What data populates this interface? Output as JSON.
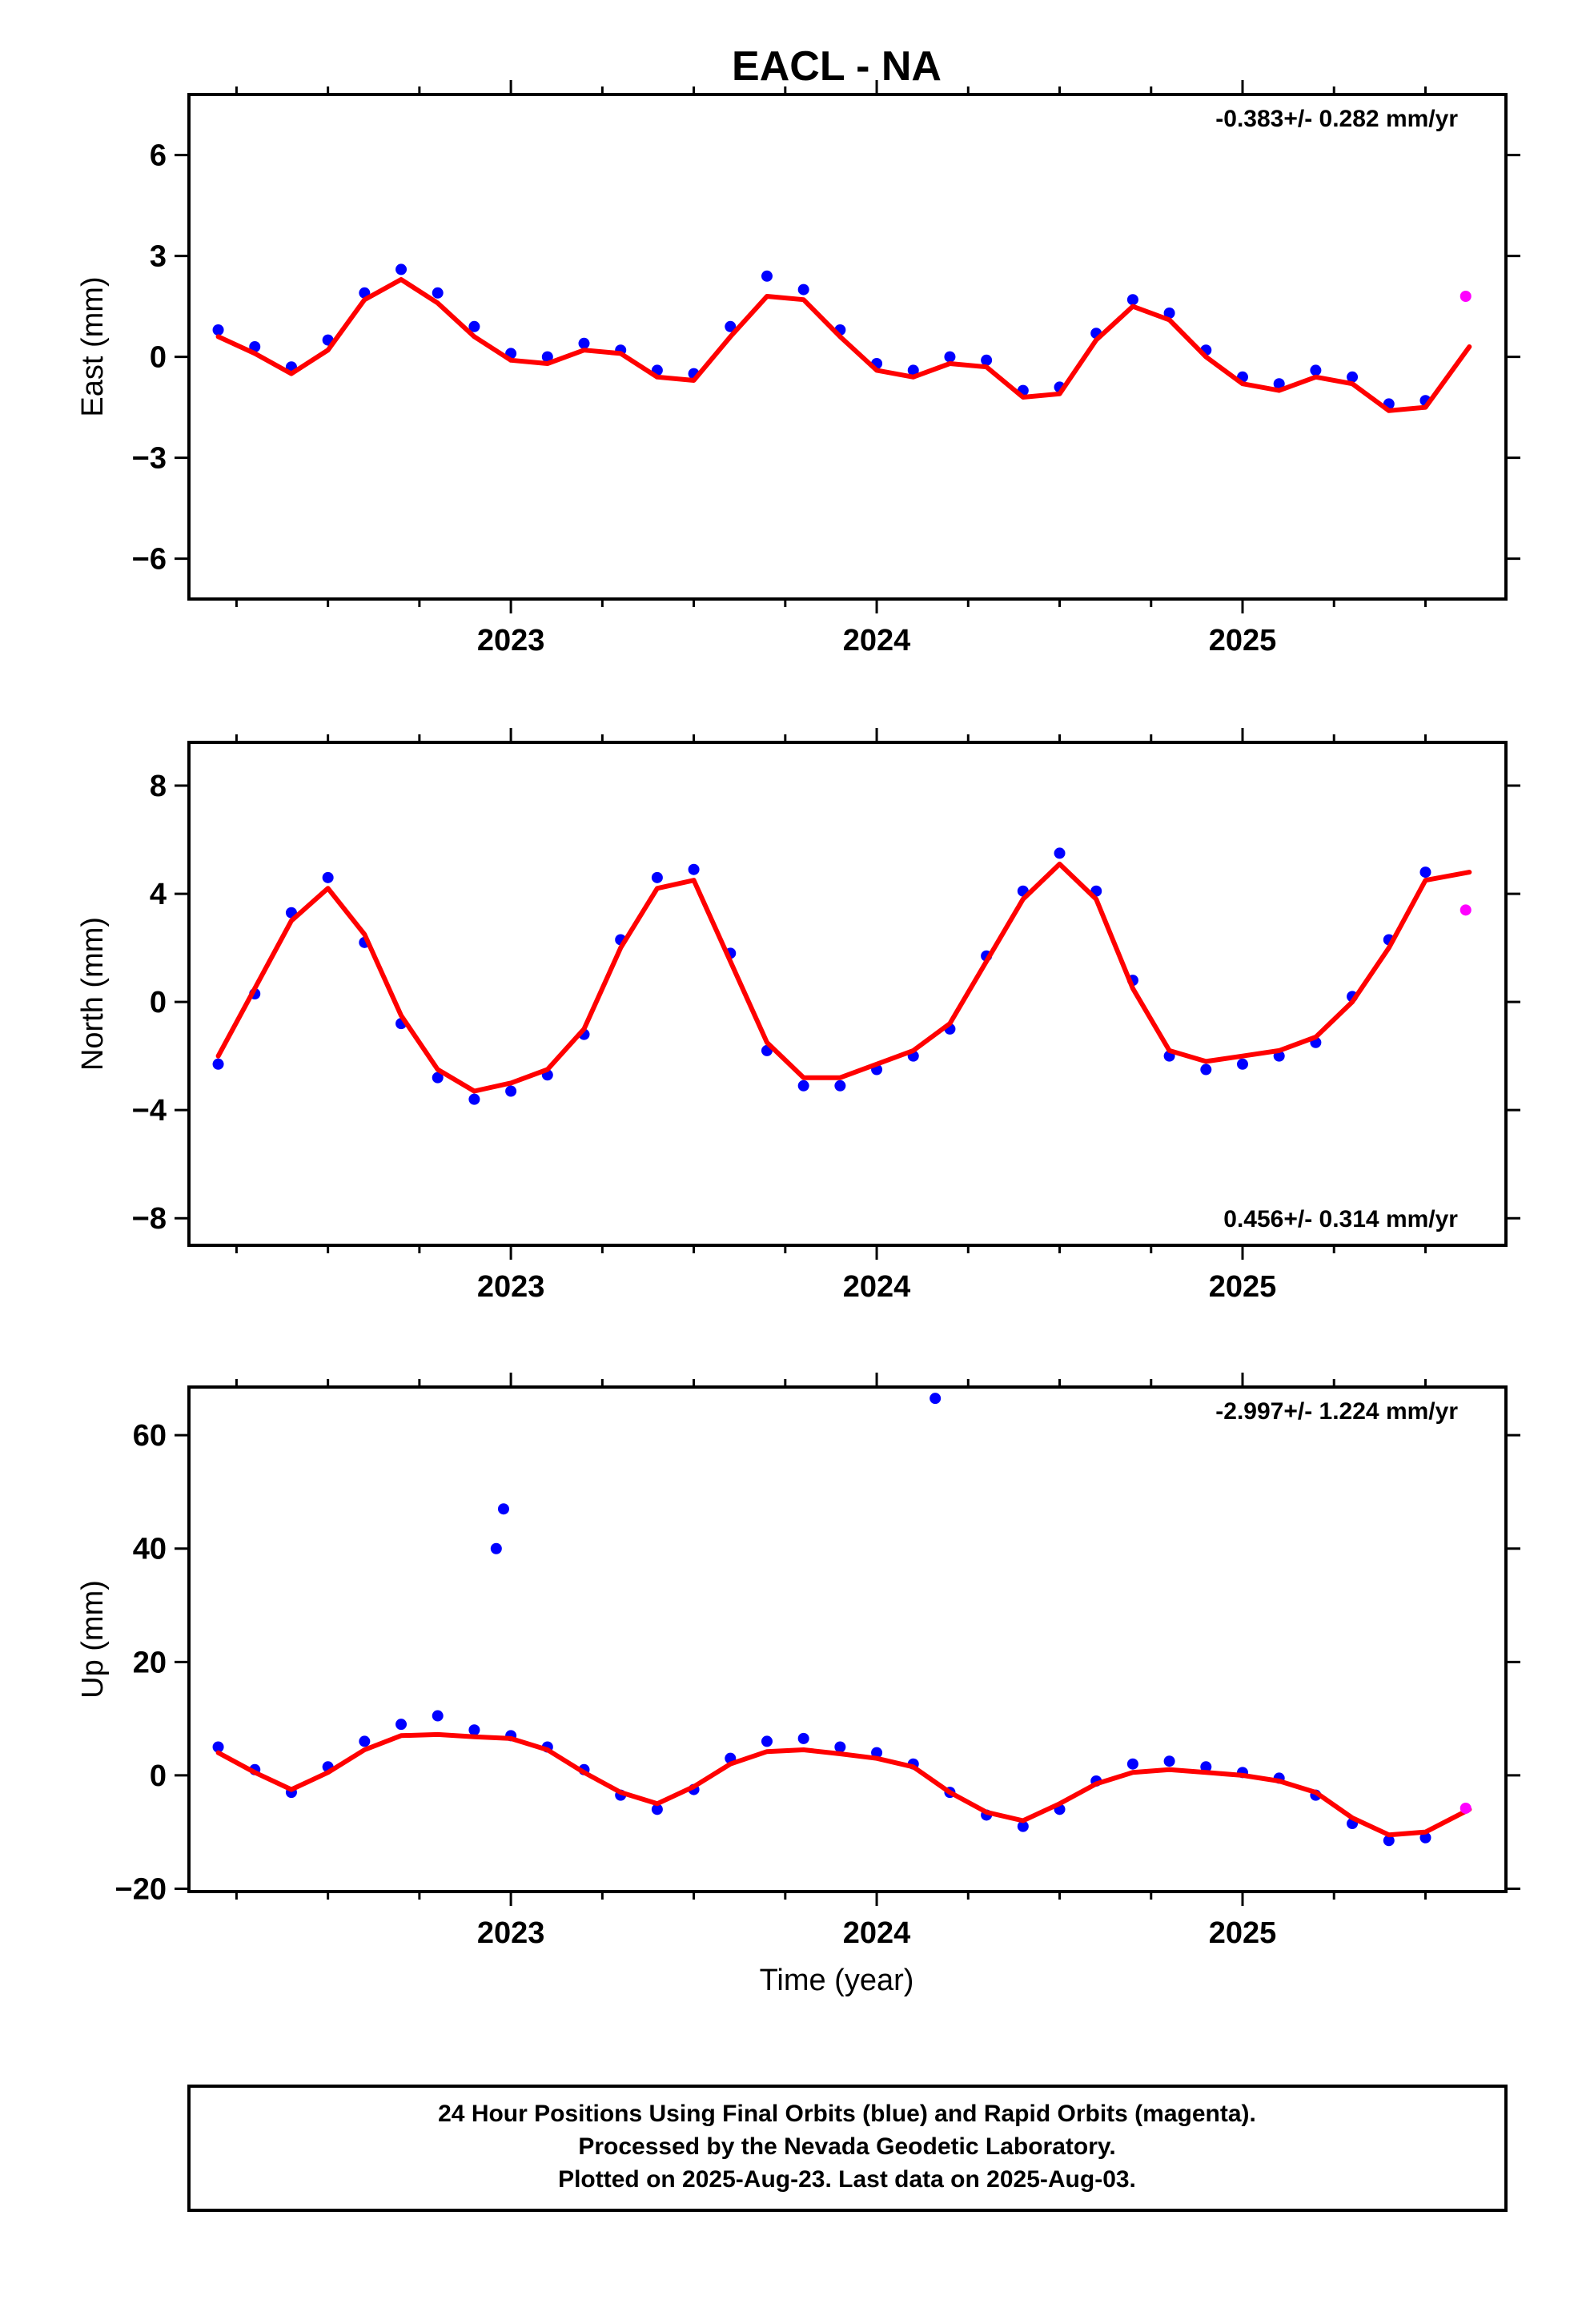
{
  "chart_data": {
    "type": "scatter",
    "title": "EACL - NA",
    "xlabel": "Time (year)",
    "xlim": [
      2022.12,
      2025.72
    ],
    "x_ticks": [
      2023,
      2024,
      2025
    ],
    "x_tick_labels": [
      "2023",
      "2024",
      "2025"
    ],
    "series_colors": {
      "final": "#0000ff",
      "rapid": "#ff00ff",
      "model": "#ff0000"
    },
    "panels": [
      {
        "name": "east",
        "ylabel": "East (mm)",
        "ylim": [
          -7.2,
          7.8
        ],
        "y_ticks": [
          -6,
          -3,
          0,
          3,
          6
        ],
        "y_tick_labels": [
          "−6",
          "−3",
          "0",
          "3",
          "6"
        ],
        "rate_label": "-0.383+/- 0.282 mm/yr",
        "model": {
          "x": [
            2022.2,
            2022.3,
            2022.4,
            2022.5,
            2022.6,
            2022.7,
            2022.8,
            2022.9,
            2023.0,
            2023.1,
            2023.2,
            2023.3,
            2023.4,
            2023.5,
            2023.6,
            2023.7,
            2023.8,
            2023.9,
            2024.0,
            2024.1,
            2024.2,
            2024.3,
            2024.4,
            2024.5,
            2024.6,
            2024.7,
            2024.8,
            2024.9,
            2025.0,
            2025.1,
            2025.2,
            2025.3,
            2025.4,
            2025.5,
            2025.62
          ],
          "y": [
            0.6,
            0.1,
            -0.5,
            0.2,
            1.7,
            2.3,
            1.6,
            0.6,
            -0.1,
            -0.2,
            0.2,
            0.1,
            -0.6,
            -0.7,
            0.6,
            1.8,
            1.7,
            0.6,
            -0.4,
            -0.6,
            -0.2,
            -0.3,
            -1.2,
            -1.1,
            0.5,
            1.5,
            1.1,
            0.0,
            -0.8,
            -1.0,
            -0.6,
            -0.8,
            -1.6,
            -1.5,
            0.3
          ]
        },
        "final_orbits": {
          "x": [
            2022.2,
            2022.3,
            2022.4,
            2022.5,
            2022.6,
            2022.7,
            2022.8,
            2022.9,
            2023.0,
            2023.1,
            2023.2,
            2023.3,
            2023.4,
            2023.5,
            2023.6,
            2023.7,
            2023.8,
            2023.9,
            2024.0,
            2024.1,
            2024.2,
            2024.3,
            2024.4,
            2024.5,
            2024.6,
            2024.7,
            2024.8,
            2024.9,
            2025.0,
            2025.1,
            2025.2,
            2025.3,
            2025.4,
            2025.5
          ],
          "y": [
            0.8,
            0.3,
            -0.3,
            0.5,
            1.9,
            2.6,
            1.9,
            0.9,
            0.1,
            0.0,
            0.4,
            0.2,
            -0.4,
            -0.5,
            0.9,
            2.4,
            2.0,
            0.8,
            -0.2,
            -0.4,
            0.0,
            -0.1,
            -1.0,
            -0.9,
            0.7,
            1.7,
            1.3,
            0.2,
            -0.6,
            -0.8,
            -0.4,
            -0.6,
            -1.4,
            -1.3
          ]
        },
        "rapid_orbits": {
          "x": [
            2025.61
          ],
          "y": [
            1.8
          ]
        }
      },
      {
        "name": "north",
        "ylabel": "North (mm)",
        "ylim": [
          -9,
          9.6
        ],
        "y_ticks": [
          -8,
          -4,
          0,
          4,
          8
        ],
        "y_tick_labels": [
          "−8",
          "−4",
          "0",
          "4",
          "8"
        ],
        "rate_label": "0.456+/- 0.314 mm/yr",
        "model": {
          "x": [
            2022.2,
            2022.3,
            2022.4,
            2022.5,
            2022.6,
            2022.7,
            2022.8,
            2022.9,
            2023.0,
            2023.1,
            2023.2,
            2023.3,
            2023.4,
            2023.5,
            2023.6,
            2023.7,
            2023.8,
            2023.9,
            2024.0,
            2024.1,
            2024.2,
            2024.3,
            2024.4,
            2024.5,
            2024.6,
            2024.7,
            2024.8,
            2024.9,
            2025.0,
            2025.1,
            2025.2,
            2025.3,
            2025.4,
            2025.5,
            2025.62
          ],
          "y": [
            -2.0,
            0.5,
            3.0,
            4.2,
            2.5,
            -0.5,
            -2.5,
            -3.3,
            -3.0,
            -2.5,
            -1.0,
            2.0,
            4.2,
            4.5,
            1.5,
            -1.5,
            -2.8,
            -2.8,
            -2.3,
            -1.8,
            -0.8,
            1.5,
            3.8,
            5.1,
            3.8,
            0.5,
            -1.8,
            -2.2,
            -2.0,
            -1.8,
            -1.3,
            0.0,
            2.0,
            4.5,
            4.8
          ]
        },
        "final_orbits": {
          "x": [
            2022.2,
            2022.3,
            2022.4,
            2022.5,
            2022.6,
            2022.7,
            2022.8,
            2022.9,
            2023.0,
            2023.1,
            2023.2,
            2023.3,
            2023.4,
            2023.5,
            2023.6,
            2023.7,
            2023.8,
            2023.9,
            2024.0,
            2024.1,
            2024.2,
            2024.3,
            2024.4,
            2024.5,
            2024.6,
            2024.7,
            2024.8,
            2024.9,
            2025.0,
            2025.1,
            2025.2,
            2025.3,
            2025.4,
            2025.5
          ],
          "y": [
            -2.3,
            0.3,
            3.3,
            4.6,
            2.2,
            -0.8,
            -2.8,
            -3.6,
            -3.3,
            -2.7,
            -1.2,
            2.3,
            4.6,
            4.9,
            1.8,
            -1.8,
            -3.1,
            -3.1,
            -2.5,
            -2.0,
            -1.0,
            1.7,
            4.1,
            5.5,
            4.1,
            0.8,
            -2.0,
            -2.5,
            -2.3,
            -2.0,
            -1.5,
            0.2,
            2.3,
            4.8
          ]
        },
        "rapid_orbits": {
          "x": [
            2025.61
          ],
          "y": [
            3.4
          ]
        }
      },
      {
        "name": "up",
        "ylabel": "Up (mm)",
        "ylim": [
          -20.5,
          68.5
        ],
        "y_ticks": [
          -20,
          0,
          20,
          40,
          60
        ],
        "y_tick_labels": [
          "−20",
          "0",
          "20",
          "40",
          "60"
        ],
        "rate_label": "-2.997+/- 1.224 mm/yr",
        "model": {
          "x": [
            2022.2,
            2022.3,
            2022.4,
            2022.5,
            2022.6,
            2022.7,
            2022.8,
            2022.9,
            2023.0,
            2023.1,
            2023.2,
            2023.3,
            2023.4,
            2023.5,
            2023.6,
            2023.7,
            2023.8,
            2023.9,
            2024.0,
            2024.1,
            2024.2,
            2024.3,
            2024.4,
            2024.5,
            2024.6,
            2024.7,
            2024.8,
            2024.9,
            2025.0,
            2025.1,
            2025.2,
            2025.3,
            2025.4,
            2025.5,
            2025.62
          ],
          "y": [
            4.0,
            0.5,
            -2.5,
            0.5,
            4.5,
            7.0,
            7.2,
            6.8,
            6.5,
            4.5,
            0.5,
            -3.0,
            -5.0,
            -2.0,
            2.0,
            4.2,
            4.5,
            3.8,
            3.0,
            1.5,
            -3.0,
            -6.5,
            -8.0,
            -5.0,
            -1.5,
            0.5,
            1.0,
            0.5,
            0.0,
            -1.0,
            -3.0,
            -7.5,
            -10.5,
            -10.0,
            -6.0
          ]
        },
        "final_orbits": {
          "x": [
            2022.2,
            2022.3,
            2022.4,
            2022.5,
            2022.6,
            2022.7,
            2022.8,
            2022.9,
            2022.96,
            2022.98,
            2023.0,
            2023.1,
            2023.2,
            2023.3,
            2023.4,
            2023.5,
            2023.6,
            2023.7,
            2023.8,
            2023.9,
            2024.0,
            2024.1,
            2024.16,
            2024.2,
            2024.3,
            2024.4,
            2024.5,
            2024.6,
            2024.7,
            2024.8,
            2024.9,
            2025.0,
            2025.1,
            2025.2,
            2025.3,
            2025.4,
            2025.5
          ],
          "y": [
            5.0,
            1.0,
            -3.0,
            1.5,
            6.0,
            9.0,
            10.5,
            8.0,
            40.0,
            47.0,
            7.0,
            5.0,
            1.0,
            -3.5,
            -6.0,
            -2.5,
            3.0,
            6.0,
            6.5,
            5.0,
            4.0,
            2.0,
            66.5,
            -3.0,
            -7.0,
            -9.0,
            -6.0,
            -1.0,
            2.0,
            2.5,
            1.5,
            0.5,
            -0.5,
            -3.5,
            -8.5,
            -11.5,
            -11.0
          ]
        },
        "rapid_orbits": {
          "x": [
            2025.61
          ],
          "y": [
            -5.8
          ]
        }
      }
    ],
    "footer_lines": [
      "24 Hour Positions Using Final Orbits (blue) and Rapid Orbits (magenta).",
      "Processed by the Nevada Geodetic Laboratory.",
      "Plotted on 2025-Aug-23. Last data on 2025-Aug-03."
    ]
  }
}
